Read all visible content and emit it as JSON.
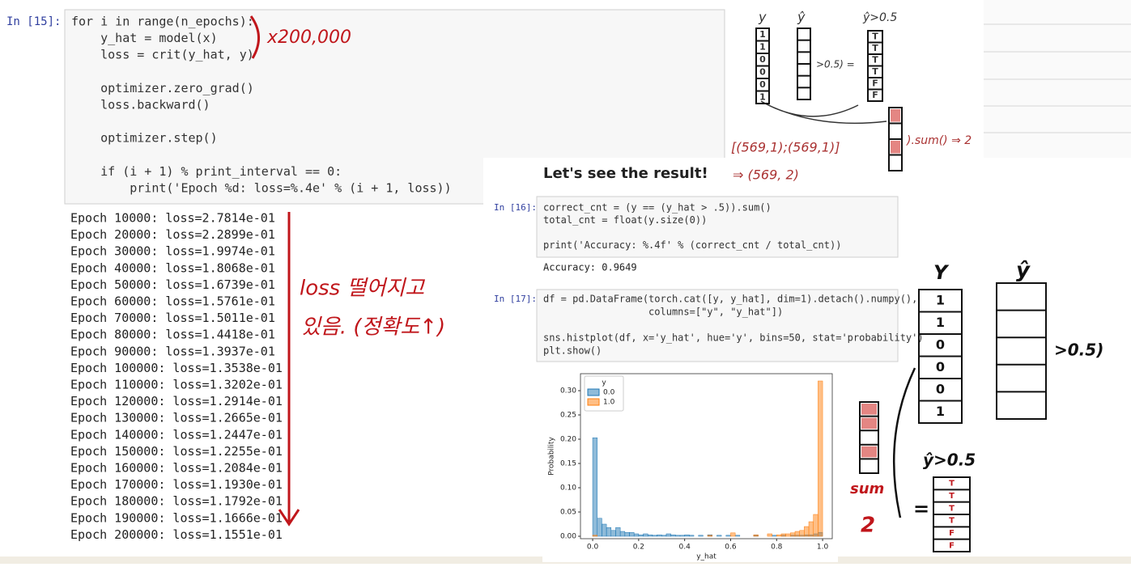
{
  "notebook": {
    "heading": "Let's see the result!",
    "cells": [
      {
        "prompt": "In [15]:",
        "code": [
          "for i in range(n_epochs):",
          "    y_hat = model(x)",
          "    loss = crit(y_hat, y)",
          "    optimizer.zero_grad()",
          "    loss.backward()",
          "    optimizer.step()",
          "    if (i + 1) % print_interval == 0:",
          "        print('Epoch %d: loss=%.4e' % (i + 1, loss))"
        ],
        "output": [
          "Epoch 10000: loss=2.7814e-01",
          "Epoch 20000: loss=2.2899e-01",
          "Epoch 30000: loss=1.9974e-01",
          "Epoch 40000: loss=1.8068e-01",
          "Epoch 50000: loss=1.6739e-01",
          "Epoch 60000: loss=1.5761e-01",
          "Epoch 70000: loss=1.5011e-01",
          "Epoch 80000: loss=1.4418e-01",
          "Epoch 90000: loss=1.3937e-01",
          "Epoch 100000: loss=1.3538e-01",
          "Epoch 110000: loss=1.3202e-01",
          "Epoch 120000: loss=1.2914e-01",
          "Epoch 130000: loss=1.2665e-01",
          "Epoch 140000: loss=1.2447e-01",
          "Epoch 150000: loss=1.2255e-01",
          "Epoch 160000: loss=1.2084e-01",
          "Epoch 170000: loss=1.1930e-01",
          "Epoch 180000: loss=1.1792e-01",
          "Epoch 190000: loss=1.1666e-01",
          "Epoch 200000: loss=1.1551e-01"
        ]
      },
      {
        "prompt": "In [16]:",
        "code": [
          "correct_cnt = (y == (y_hat > .5)).sum()",
          "total_cnt = float(y.size(0))",
          "print('Accuracy: %.4f' % (correct_cnt / total_cnt))"
        ],
        "output": [
          "Accuracy: 0.9649"
        ]
      },
      {
        "prompt": "In [17]:",
        "code": [
          "df = pd.DataFrame(torch.cat([y, y_hat], dim=1).detach().numpy(),",
          "                  columns=[\"y\", \"y_hat\"])",
          "sns.histplot(df, x='y_hat', hue='y', bins=50, stat='probability')",
          "plt.show()"
        ]
      }
    ]
  },
  "annotations": {
    "epochs_note": "x200,000",
    "loss_note": [
      "loss 떨어지고",
      "있음. (정확도↑)"
    ],
    "shape_note": "[(569,1);(569,1)]",
    "shape_result": "⇒ (569, 2)",
    "sum_note": ").sum() ⇒ 2",
    "top_diagram": {
      "y_label": "y",
      "yhat_label": "ŷ",
      "mask_label": "ŷ>0.5",
      "compare": ">0.5) =",
      "y_cells": [
        "1",
        "1",
        "0",
        "0",
        "0",
        "1"
      ],
      "mask_cells": [
        "T",
        "T",
        "T",
        "T",
        "F",
        "F"
      ]
    },
    "big_diagram": {
      "y_label": "Y",
      "yhat_label": "ŷ",
      "compare": ">0.5)",
      "mask_label": "ŷ>0.5",
      "y_cells": [
        "1",
        "1",
        "0",
        "0",
        "0",
        "1"
      ],
      "mask_cells": [
        "T",
        "T",
        "T",
        "T",
        "F",
        "F"
      ],
      "sum_label": "sum",
      "sum_result": "2",
      "equals": "="
    }
  },
  "chart_data": {
    "type": "histogram",
    "xlabel": "y_hat",
    "ylabel": "Probability",
    "legend_title": "y",
    "legend": "upper left",
    "bins": [
      0,
      0.02,
      0.04,
      0.06,
      0.08,
      0.1,
      0.12,
      0.14,
      0.16,
      0.18,
      0.2,
      0.22,
      0.24,
      0.26,
      0.28,
      0.3,
      0.32,
      0.34,
      0.36,
      0.38,
      0.4,
      0.42,
      0.44,
      0.46,
      0.48,
      0.5,
      0.52,
      0.54,
      0.56,
      0.58,
      0.6,
      0.62,
      0.64,
      0.66,
      0.68,
      0.7,
      0.72,
      0.74,
      0.76,
      0.78,
      0.8,
      0.82,
      0.84,
      0.86,
      0.88,
      0.9,
      0.92,
      0.94,
      0.96,
      0.98,
      1.0
    ],
    "series": [
      {
        "name": "0.0",
        "color": "#1f77b4",
        "values": [
          0.203,
          0.037,
          0.025,
          0.018,
          0.012,
          0.018,
          0.01,
          0.008,
          0.008,
          0.005,
          0.003,
          0.005,
          0.003,
          0.002,
          0.003,
          0.002,
          0.005,
          0.003,
          0.002,
          0.002,
          0.003,
          0.002,
          0,
          0.002,
          0,
          0.003,
          0,
          0.002,
          0,
          0.002,
          0,
          0.002,
          0,
          0,
          0,
          0.002,
          0,
          0,
          0,
          0.002,
          0,
          0.002,
          0,
          0.002,
          0.002,
          0.002,
          0.003,
          0.003,
          0.005,
          0.008
        ]
      },
      {
        "name": "1.0",
        "color": "#ff7f0e",
        "values": [
          0.002,
          0,
          0,
          0,
          0,
          0,
          0,
          0,
          0,
          0,
          0,
          0,
          0,
          0,
          0,
          0,
          0,
          0,
          0,
          0,
          0,
          0,
          0,
          0,
          0,
          0.002,
          0,
          0,
          0,
          0,
          0.007,
          0,
          0,
          0,
          0,
          0.003,
          0,
          0,
          0.005,
          0,
          0.003,
          0.005,
          0.005,
          0.007,
          0.01,
          0.012,
          0.02,
          0.03,
          0.045,
          0.32
        ]
      }
    ],
    "xlim": [
      -0.053,
      1.042
    ],
    "ylim": [
      -0.005,
      0.335
    ],
    "xticks": [
      {
        "value": 0,
        "label": "0.0"
      },
      0.2,
      0.4,
      0.6,
      0.8,
      {
        "value": 1,
        "label": "1.0"
      }
    ],
    "yticks": [
      {
        "value": 0,
        "label": "0.00"
      },
      0.05,
      {
        "value": 0.1,
        "label": "0.10"
      },
      0.15,
      {
        "value": 0.2,
        "label": "0.20"
      },
      0.25,
      {
        "value": 0.3,
        "label": "0.30"
      }
    ]
  }
}
